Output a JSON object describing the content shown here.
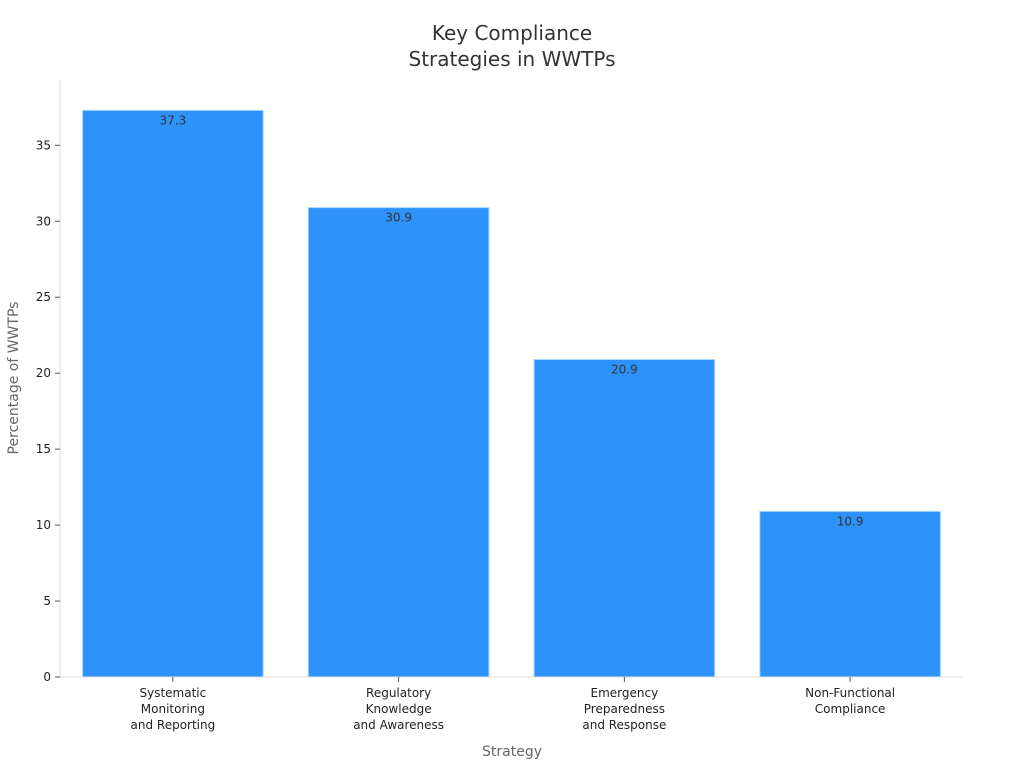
{
  "chart_data": {
    "type": "bar",
    "title": [
      "Key Compliance",
      "Strategies in WWTPs"
    ],
    "xlabel": "Strategy",
    "ylabel": "Percentage of WWTPs",
    "categories": [
      [
        "Systematic",
        "Monitoring",
        "and Reporting"
      ],
      [
        "Regulatory",
        "Knowledge",
        "and Awareness"
      ],
      [
        "Emergency",
        "Preparedness",
        "and Response"
      ],
      [
        "Non-Functional",
        "Compliance"
      ]
    ],
    "values": [
      37.3,
      30.9,
      20.9,
      10.9
    ],
    "value_labels": [
      "37.3",
      "30.9",
      "20.9",
      "10.9"
    ],
    "ylim": [
      0,
      39.3
    ],
    "yticks": [
      0,
      5,
      10,
      15,
      20,
      25,
      30,
      35
    ],
    "ytick_labels": [
      "0",
      "5",
      "10",
      "15",
      "20",
      "25",
      "30",
      "35"
    ],
    "bar_color": "#2d92fa",
    "grid": false,
    "legend": "none"
  }
}
